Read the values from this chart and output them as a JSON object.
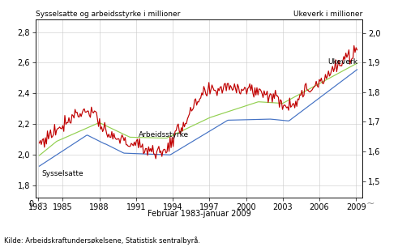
{
  "title_left": "Sysselsatte og arbeidsstyrke i millioner",
  "title_right": "Ukeverk i millioner",
  "xlabel": "Februar 1983-januar 2009",
  "source": "Kilde: Arbeidskraftundersøkelsene, Statistisk sentralbyrå.",
  "left_ylim": [
    1.72,
    2.88
  ],
  "right_ylim": [
    1.444,
    2.044
  ],
  "left_yticks": [
    1.8,
    2.0,
    2.2,
    2.4,
    2.6,
    2.8
  ],
  "left_ytick_labels": [
    "1,8",
    "2,0",
    "2,2",
    "2,4",
    "2,6",
    "2,8"
  ],
  "right_yticks": [
    1.5,
    1.6,
    1.7,
    1.8,
    1.9,
    2.0
  ],
  "right_ytick_labels": [
    "1,5",
    "1,6",
    "1,7",
    "1,8",
    "1,9",
    "2,0"
  ],
  "xmin": 1982.8,
  "xmax": 2009.5,
  "xticks": [
    1983,
    1985,
    1988,
    1991,
    1994,
    1997,
    2000,
    2003,
    2006,
    2009
  ],
  "xtick_labels": [
    "1983",
    "1985",
    "1988",
    "1991",
    "1994",
    "1997",
    "2000",
    "2003",
    "2006",
    "2009"
  ],
  "label_sysselsatte": "Sysselsatte",
  "label_arbeidsstyrke": "Arbeidsstyrke",
  "label_ukeverk": "Ukeverk",
  "color_sysselsatte": "#4472c4",
  "color_arbeidsstyrke": "#92d050",
  "color_ukeverk": "#c00000",
  "linewidth": 0.85,
  "bg_color": "#ffffff",
  "grid_color": "#c8c8c8",
  "bottom_label_extra": "0",
  "break_char": "∼"
}
